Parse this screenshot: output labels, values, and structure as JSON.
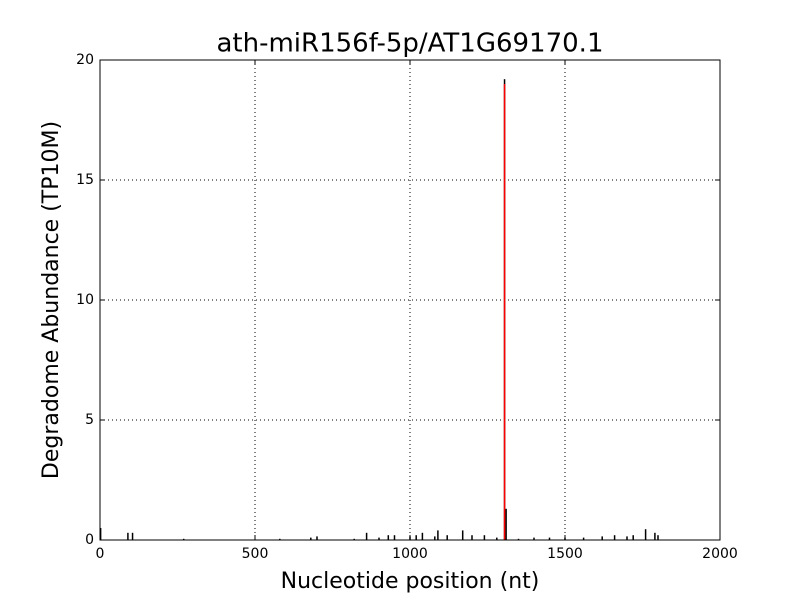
{
  "chart_data": {
    "type": "bar",
    "title": "ath-miR156f-5p/AT1G69170.1",
    "x_label": "Nucleotide position (nt)",
    "y_label": "Degradome Abundance (TP10M)",
    "xlim": [
      0,
      2000
    ],
    "xticks": [
      0,
      500,
      1000,
      1500,
      2000
    ],
    "ylim": [
      0,
      20
    ],
    "yticks": [
      0,
      5,
      10,
      15,
      20
    ],
    "grid": true,
    "series": [
      {
        "color": "#000000",
        "x": [
          2,
          90,
          105,
          270,
          580,
          680,
          700,
          820,
          860,
          900,
          930,
          950,
          1000,
          1020,
          1040,
          1080,
          1090,
          1120,
          1170,
          1200,
          1240,
          1280,
          1305,
          1310,
          1350,
          1400,
          1450,
          1500,
          1560,
          1620,
          1660,
          1700,
          1720,
          1760,
          1790,
          1800
        ],
        "values": [
          0.5,
          0.3,
          0.3,
          0.05,
          0.05,
          0.1,
          0.15,
          0.05,
          0.3,
          0.1,
          0.2,
          0.2,
          0.15,
          0.2,
          0.3,
          0.15,
          0.4,
          0.2,
          0.4,
          0.2,
          0.2,
          0.1,
          19.2,
          1.3,
          0.05,
          0.1,
          0.1,
          0.1,
          0.1,
          0.15,
          0.2,
          0.15,
          0.2,
          0.45,
          0.3,
          0.2
        ]
      },
      {
        "color": "#ff0000",
        "x": [
          1305
        ],
        "values": [
          19.0
        ]
      }
    ]
  }
}
